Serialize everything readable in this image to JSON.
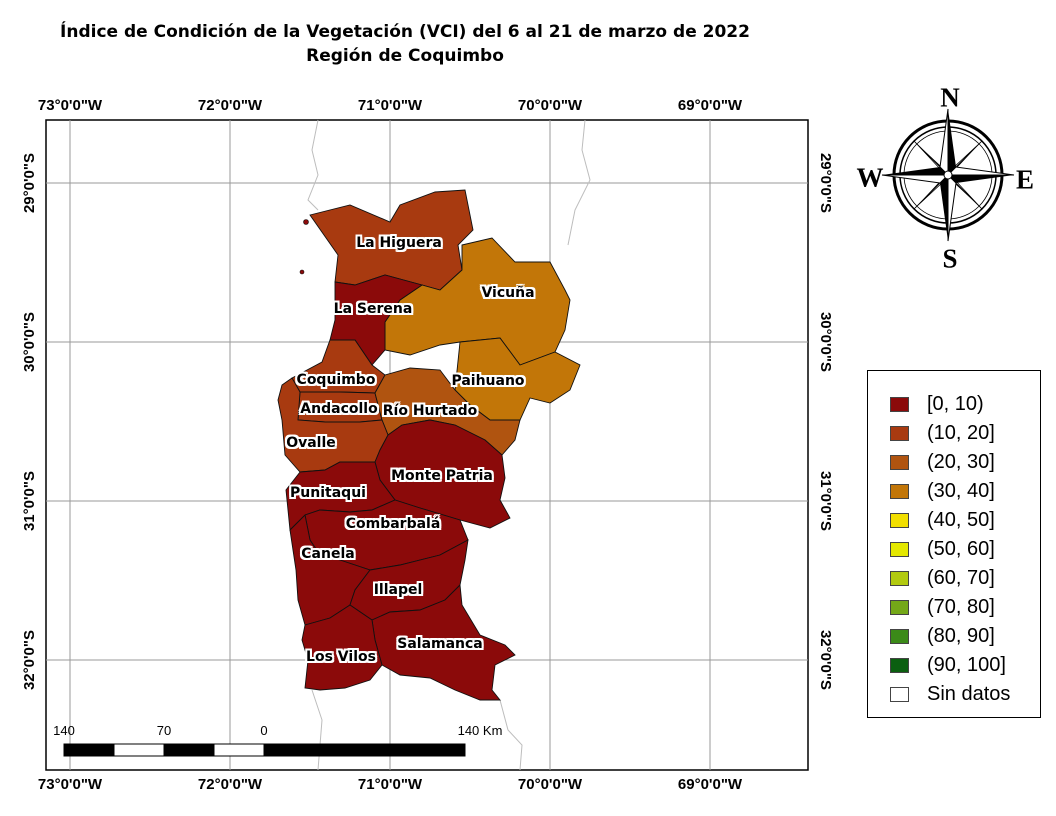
{
  "title": {
    "line1": "Índice de Condición de la Vegetación (VCI) del 6 al 21 de marzo de 2022",
    "line2": "Región de Coquimbo"
  },
  "graticule": {
    "longitudes": [
      "73°0'0\"W",
      "72°0'0\"W",
      "71°0'0\"W",
      "70°0'0\"W",
      "69°0'0\"W"
    ],
    "latitudes": [
      "29°0'0\"S",
      "30°0'0\"S",
      "31°0'0\"S",
      "32°0'0\"S"
    ]
  },
  "colors": {
    "c0_10": "#8b0a0a",
    "c10_20": "#a83a10",
    "c20_30": "#b05410",
    "c30_40": "#c27608",
    "c40_50": "#f2df00",
    "c50_60": "#e4e800",
    "c60_70": "#b2ca10",
    "c70_80": "#74a818",
    "c80_90": "#3b8a18",
    "c90_100": "#0b5f10",
    "sin_datos": "#ffffff"
  },
  "communes": [
    {
      "name": "La Higuera",
      "class": "(10, 20]"
    },
    {
      "name": "La Serena",
      "class": "[0, 10)"
    },
    {
      "name": "Vicuña",
      "class": "(30, 40]"
    },
    {
      "name": "Coquimbo",
      "class": "(10, 20]"
    },
    {
      "name": "Paihuano",
      "class": "(30, 40]"
    },
    {
      "name": "Andacollo",
      "class": "(10, 20]"
    },
    {
      "name": "Río Hurtado",
      "class": "(20, 30]"
    },
    {
      "name": "Ovalle",
      "class": "(10, 20]"
    },
    {
      "name": "Monte Patria",
      "class": "[0, 10)"
    },
    {
      "name": "Punitaqui",
      "class": "[0, 10)"
    },
    {
      "name": "Combarbalá",
      "class": "[0, 10)"
    },
    {
      "name": "Canela",
      "class": "[0, 10)"
    },
    {
      "name": "Illapel",
      "class": "[0, 10)"
    },
    {
      "name": "Salamanca",
      "class": "[0, 10)"
    },
    {
      "name": "Los Vilos",
      "class": "[0, 10)"
    }
  ],
  "scale_bar": {
    "labels": [
      "140",
      "70",
      "0",
      "140 Km"
    ]
  },
  "compass": {
    "n": "N",
    "s": "S",
    "e": "E",
    "w": "W"
  },
  "legend": {
    "items": [
      {
        "label": "[0, 10)",
        "color": "#8b0a0a"
      },
      {
        "label": "(10, 20]",
        "color": "#a83a10"
      },
      {
        "label": "(20, 30]",
        "color": "#b05410"
      },
      {
        "label": "(30, 40]",
        "color": "#c27608"
      },
      {
        "label": "(40, 50]",
        "color": "#f2df00"
      },
      {
        "label": "(50, 60]",
        "color": "#e4e800"
      },
      {
        "label": "(60, 70]",
        "color": "#b2ca10"
      },
      {
        "label": "(70, 80]",
        "color": "#74a818"
      },
      {
        "label": "(80, 90]",
        "color": "#3b8a18"
      },
      {
        "label": "(90, 100]",
        "color": "#0b5f10"
      },
      {
        "label": "Sin datos",
        "color": "#ffffff"
      }
    ]
  }
}
